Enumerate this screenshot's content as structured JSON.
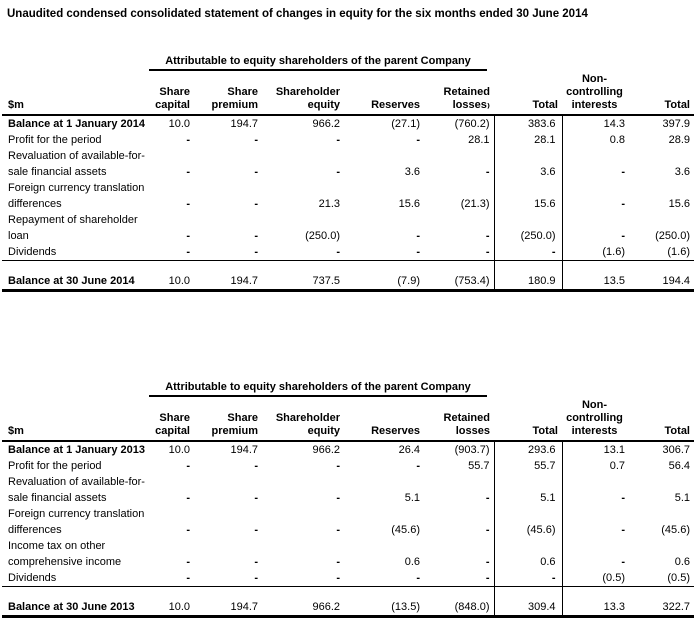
{
  "page": {
    "title": "Unaudited condensed consolidated statement of changes in equity for the six months ended 30 June 2014"
  },
  "tables": [
    {
      "period": "2014",
      "span_header": "Attributable to equity shareholders of the parent Company",
      "col_headers": [
        "$m",
        "Share\ncapital",
        "Share\npremium",
        "Shareholder\nequity",
        "Reserves",
        "Retained\nlosses₎",
        "Total",
        "Non-\ncontrolling\ninterests",
        "Total"
      ],
      "rows": [
        {
          "label": "Balance at 1 January 2014",
          "bold": true,
          "cells": [
            "10.0",
            "194.7",
            "966.2",
            "(27.1)",
            "(760.2)",
            "383.6",
            "14.3",
            "397.9"
          ]
        },
        {
          "label": "Profit for the period",
          "cells": [
            "-",
            "-",
            "-",
            "-",
            "28.1",
            "28.1",
            "0.8",
            "28.9"
          ]
        },
        {
          "label": "Revaluation of available-for-\nsale financial assets",
          "cells": [
            "-",
            "-",
            "-",
            "3.6",
            "-",
            "3.6",
            "-",
            "3.6"
          ]
        },
        {
          "label": "Foreign currency translation\ndifferences",
          "cells": [
            "-",
            "-",
            "21.3",
            "15.6",
            "(21.3)",
            "15.6",
            "-",
            "15.6"
          ]
        },
        {
          "label": "Repayment of shareholder\nloan",
          "cells": [
            "-",
            "-",
            "(250.0)",
            "-",
            "-",
            "(250.0)",
            "-",
            "(250.0)"
          ]
        },
        {
          "label": "Dividends",
          "cells": [
            "-",
            "-",
            "-",
            "-",
            "-",
            "-",
            "(1.6)",
            "(1.6)"
          ]
        }
      ],
      "total_row": {
        "label": "Balance at 30 June 2014",
        "cells": [
          "10.0",
          "194.7",
          "737.5",
          "(7.9)",
          "(753.4)",
          "180.9",
          "13.5",
          "194.4"
        ]
      }
    },
    {
      "period": "2013",
      "span_header": "Attributable to equity shareholders of the parent Company",
      "col_headers": [
        "$m",
        "Share\ncapital",
        "Share\npremium",
        "Shareholder\nequity",
        "Reserves",
        "Retained\nlosses",
        "Total",
        "Non-\ncontrolling\ninterests",
        "Total"
      ],
      "rows": [
        {
          "label": "Balance at 1 January 2013",
          "bold": true,
          "cells": [
            "10.0",
            "194.7",
            "966.2",
            "26.4",
            "(903.7)",
            "293.6",
            "13.1",
            "306.7"
          ]
        },
        {
          "label": "Profit for the period",
          "cells": [
            "-",
            "-",
            "-",
            "-",
            "55.7",
            "55.7",
            "0.7",
            "56.4"
          ]
        },
        {
          "label": "Revaluation of available-for-\nsale financial assets",
          "cells": [
            "-",
            "-",
            "-",
            "5.1",
            "-",
            "5.1",
            "-",
            "5.1"
          ]
        },
        {
          "label": "Foreign currency translation\ndifferences",
          "cells": [
            "-",
            "-",
            "-",
            "(45.6)",
            "-",
            "(45.6)",
            "-",
            "(45.6)"
          ]
        },
        {
          "label": "Income tax on other\ncomprehensive income",
          "cells": [
            "-",
            "-",
            "-",
            "0.6",
            "-",
            "0.6",
            "-",
            "0.6"
          ]
        },
        {
          "label": "Dividends",
          "cells": [
            "-",
            "-",
            "-",
            "-",
            "-",
            "-",
            "(0.5)",
            "(0.5)"
          ]
        }
      ],
      "total_row": {
        "label": "Balance at 30 June 2013",
        "cells": [
          "10.0",
          "194.7",
          "966.2",
          "(13.5)",
          "(848.0)",
          "309.4",
          "13.3",
          "322.7"
        ]
      }
    }
  ]
}
